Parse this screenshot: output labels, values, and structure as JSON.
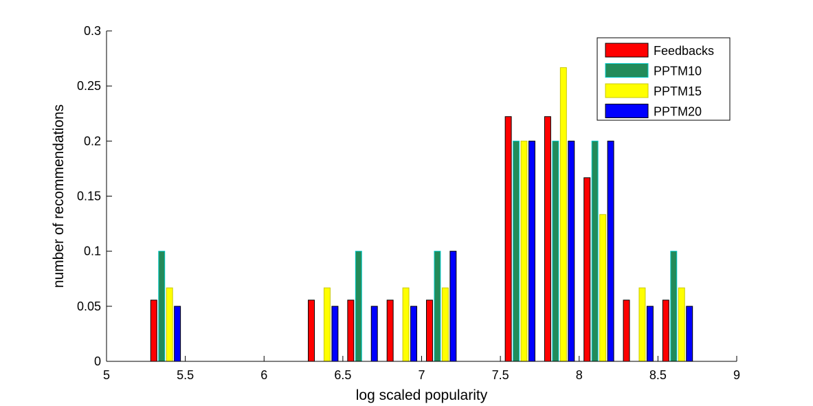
{
  "chart_data": {
    "type": "bar",
    "title": "",
    "xlabel": "log scaled popularity",
    "ylabel": "number of recommendations",
    "xlim": [
      5,
      9
    ],
    "ylim": [
      0,
      0.3
    ],
    "xticks": [
      "5",
      "5.5",
      "6",
      "6.5",
      "7",
      "7.5",
      "8",
      "8.5",
      "9"
    ],
    "yticks": [
      "0",
      "0.05",
      "0.1",
      "0.15",
      "0.2",
      "0.25",
      "0.3"
    ],
    "grid": false,
    "legend_position": "top-right",
    "bin_centers": [
      5.125,
      5.375,
      5.625,
      5.875,
      6.125,
      6.375,
      6.625,
      6.875,
      7.125,
      7.375,
      7.625,
      7.875,
      8.125,
      8.375,
      8.625,
      8.875
    ],
    "series": [
      {
        "name": "Feedbacks",
        "color": "#ff0000",
        "edge": "#000000",
        "values": [
          0,
          0.0556,
          0,
          0,
          0,
          0.0556,
          0.0556,
          0.0556,
          0.0556,
          0,
          0.2222,
          0.2222,
          0.1667,
          0.0556,
          0.0556,
          0
        ]
      },
      {
        "name": "PPTM10",
        "color": "#238b5a",
        "edge": "#00c8c8",
        "values": [
          0,
          0.1,
          0,
          0,
          0,
          0,
          0.1,
          0,
          0.1,
          0,
          0.2,
          0.2,
          0.2,
          0,
          0.1,
          0
        ]
      },
      {
        "name": "PPTM15",
        "color": "#ffff00",
        "edge": "#c8c800",
        "values": [
          0,
          0.0667,
          0,
          0,
          0,
          0.0667,
          0,
          0.0667,
          0.0667,
          0,
          0.2,
          0.2667,
          0.1333,
          0.0667,
          0.0667,
          0
        ]
      },
      {
        "name": "PPTM20",
        "color": "#0000ff",
        "edge": "#000000",
        "values": [
          0,
          0.05,
          0,
          0,
          0,
          0.05,
          0.05,
          0.05,
          0.1,
          0,
          0.2,
          0.2,
          0.2,
          0.05,
          0.05,
          0
        ]
      }
    ]
  }
}
